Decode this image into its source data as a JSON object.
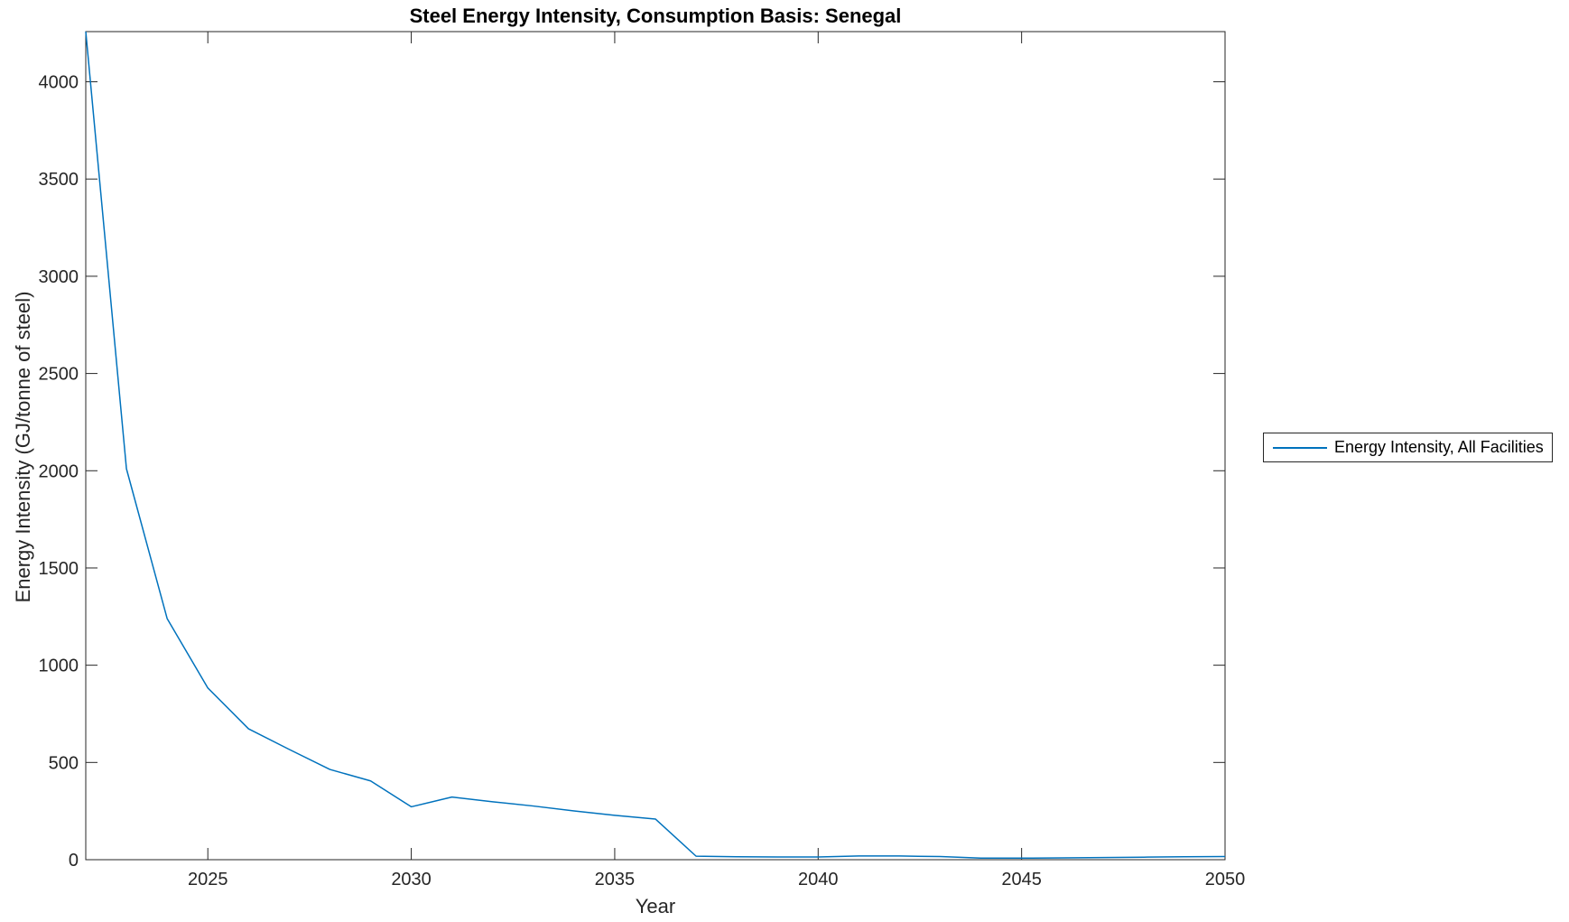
{
  "figure": {
    "background": "#ffffff",
    "axis_color": "#262626",
    "line_color": "#0072BD"
  },
  "chart_data": {
    "type": "line",
    "title": "Steel Energy Intensity, Consumption Basis: Senegal",
    "xlabel": "Year",
    "ylabel": "Energy Intensity (GJ/tonne of steel)",
    "xlim": [
      2022,
      2050
    ],
    "ylim": [
      0,
      4258
    ],
    "xticks": [
      2025,
      2030,
      2035,
      2040,
      2045,
      2050
    ],
    "yticks": [
      0,
      500,
      1000,
      1500,
      2000,
      2500,
      3000,
      3500,
      4000
    ],
    "grid": false,
    "legend_position": "right-outside",
    "series": [
      {
        "name": "Energy Intensity, All Facilities",
        "color": "#0072BD",
        "x": [
          2022,
          2023,
          2024,
          2025,
          2026,
          2027,
          2028,
          2029,
          2030,
          2031,
          2032,
          2033,
          2034,
          2035,
          2036,
          2037,
          2038,
          2039,
          2040,
          2041,
          2042,
          2043,
          2044,
          2045,
          2046,
          2047,
          2048,
          2049,
          2050
        ],
        "y": [
          4258,
          2010,
          1240,
          883,
          673,
          567,
          464,
          405,
          272,
          322,
          298,
          276,
          251,
          228,
          209,
          18,
          15,
          14,
          14,
          19,
          19,
          16,
          8,
          8,
          9,
          11,
          13,
          15,
          16
        ]
      }
    ]
  }
}
